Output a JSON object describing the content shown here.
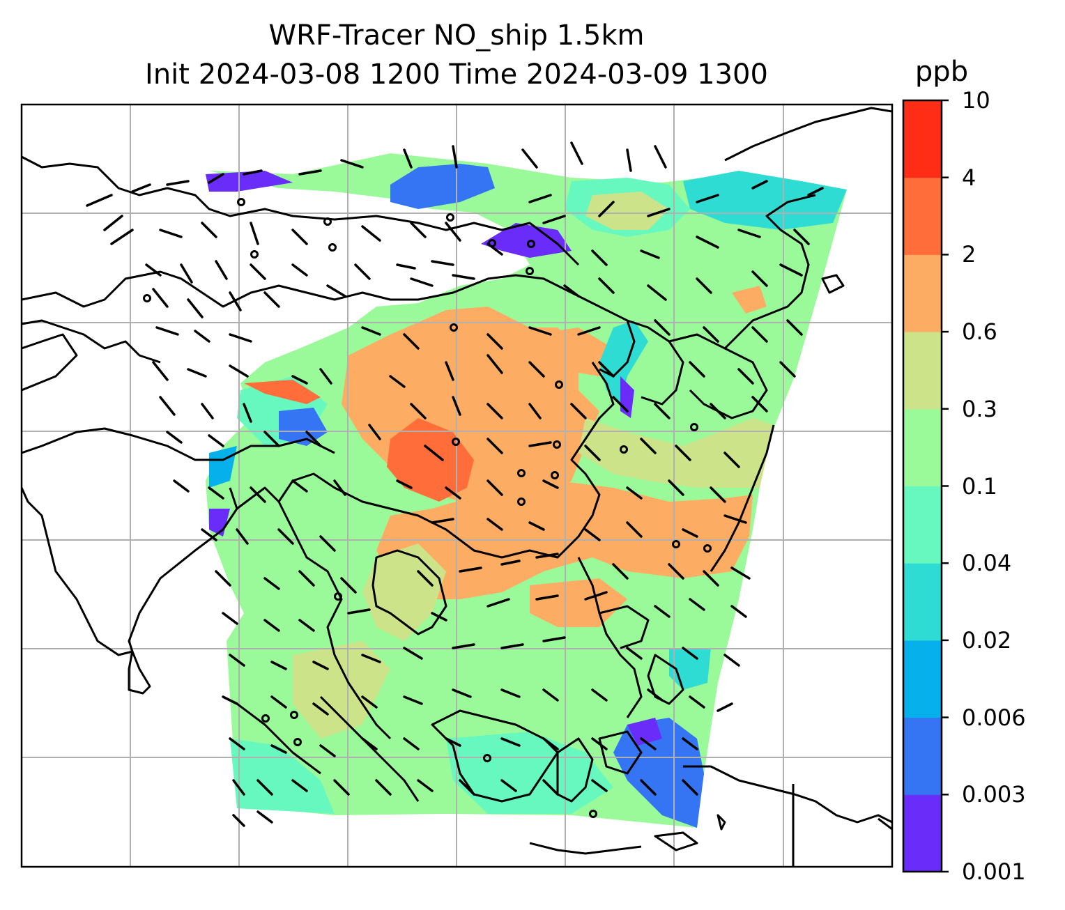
{
  "title": {
    "line1": "WRF-Tracer NO_ship 1.5km",
    "line2": "Init 2024-03-08 1200 Time 2024-03-09 1300"
  },
  "colorbar": {
    "unit": "ppb",
    "levels": [
      "0.001",
      "0.003",
      "0.006",
      "0.02",
      "0.04",
      "0.1",
      "0.3",
      "0.6",
      "2",
      "4",
      "10"
    ],
    "colors": [
      "#6a2cf8",
      "#3574f3",
      "#06b0ea",
      "#2fdcd4",
      "#66f8bf",
      "#9afa9a",
      "#cde38a",
      "#fdad63",
      "#ff6e3a",
      "#ff2d16"
    ]
  },
  "map": {
    "variable": "NO_ship",
    "level": "1.5km",
    "overlays": [
      "coastlines",
      "lat-lon-gridlines",
      "wind-barbs"
    ]
  }
}
